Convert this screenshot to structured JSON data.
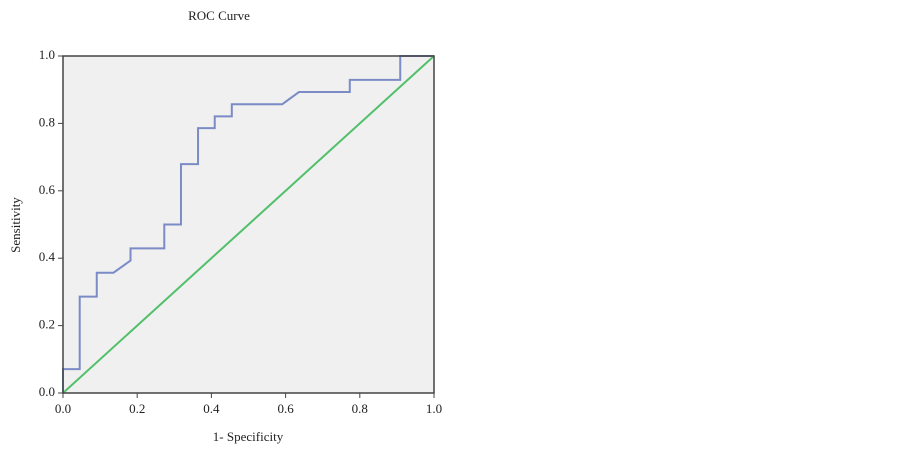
{
  "chart_data": {
    "type": "line",
    "title": "ROC Curve",
    "xlabel": "1- Specificity",
    "ylabel": "Sensitivity",
    "xlim": [
      0,
      1
    ],
    "ylim": [
      0,
      1
    ],
    "xticks": [
      {
        "value": 0,
        "label": "0.0"
      },
      0.2,
      0.4,
      0.6,
      0.8,
      {
        "value": 1,
        "label": "1.0"
      }
    ],
    "yticks": [
      {
        "value": 0,
        "label": "0.0"
      },
      0.2,
      0.4,
      0.6,
      0.8,
      {
        "value": 1,
        "label": "1.0"
      }
    ],
    "background": "#f0f0f0",
    "series": [
      {
        "color": "#7b8bc6",
        "x": [
          0,
          0,
          0.045,
          0.045,
          0.091,
          0.091,
          0.136,
          0.182,
          0.182,
          0.273,
          0.273,
          0.318,
          0.318,
          0.364,
          0.364,
          0.409,
          0.409,
          0.455,
          0.455,
          0.591,
          0.636,
          0.773,
          0.773,
          0.909,
          0.909,
          1
        ],
        "values": [
          0,
          0.071,
          0.071,
          0.286,
          0.286,
          0.357,
          0.357,
          0.393,
          0.429,
          0.429,
          0.5,
          0.5,
          0.679,
          0.679,
          0.786,
          0.786,
          0.821,
          0.821,
          0.857,
          0.857,
          0.893,
          0.893,
          0.929,
          0.929,
          1,
          1
        ]
      },
      {
        "color": "#52c06b",
        "x": [
          0,
          1
        ],
        "values": [
          0,
          1
        ]
      }
    ]
  }
}
